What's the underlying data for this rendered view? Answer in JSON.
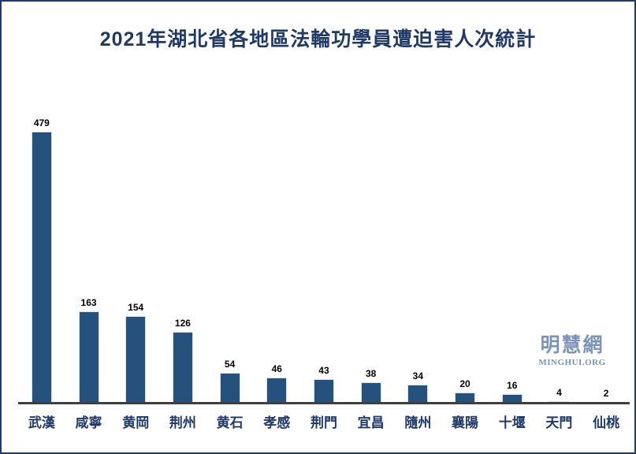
{
  "title": "2021年湖北省各地區法輪功學員遭迫害人次統計",
  "watermark": {
    "name": "明慧網",
    "url": "MINGHUI.ORG",
    "color": "#7B93BA"
  },
  "colors": {
    "bar": "#25527D",
    "bar_border": "#D8E0EA",
    "title_text": "#1F3A68",
    "category_text": "#1F3A68",
    "value_text": "#000000",
    "axis": "#3F3F3F",
    "frame_border": "#1E3A66",
    "background": "#FFFFFF"
  },
  "chart_data": {
    "type": "bar",
    "title": "2021年湖北省各地區法輪功學員遭迫害人次統計",
    "categories": [
      "武漢",
      "咸寧",
      "黄岡",
      "荆州",
      "黄石",
      "孝感",
      "荆門",
      "宜昌",
      "隨州",
      "襄陽",
      "十堰",
      "天門",
      "仙桃"
    ],
    "values": [
      479,
      163,
      154,
      126,
      54,
      46,
      43,
      38,
      34,
      20,
      16,
      4,
      2
    ],
    "xlabel": "",
    "ylabel": "",
    "ylim": [
      0,
      500
    ],
    "grid": false,
    "legend": "none",
    "data_labels": true,
    "orientation": "vertical"
  }
}
